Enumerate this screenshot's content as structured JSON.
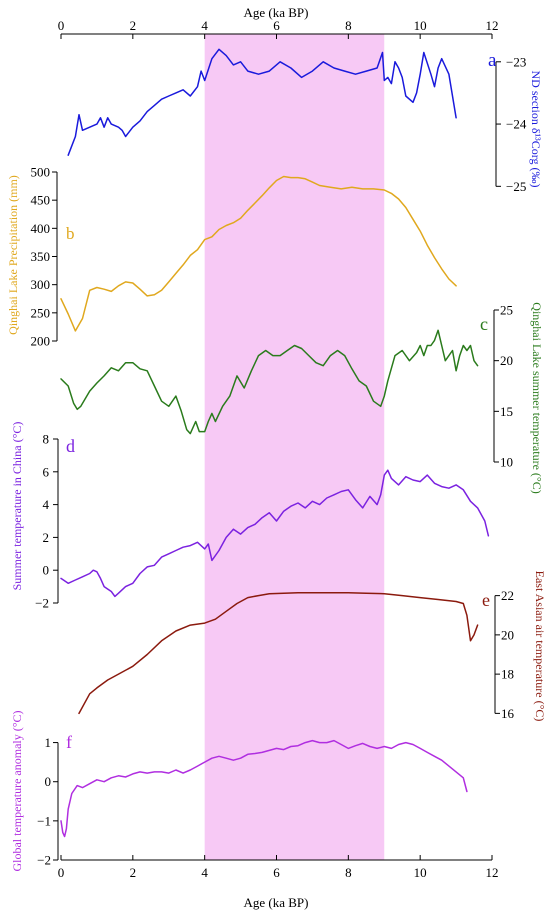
{
  "chart_data": {
    "type": "line",
    "x_axis": {
      "label": "Age (ka BP)",
      "range": [
        0,
        12
      ],
      "ticks": [
        0,
        2,
        4,
        6,
        8,
        10,
        12
      ],
      "tick_labels": [
        "0",
        "2",
        "4",
        "6",
        "8",
        "10",
        "12"
      ]
    },
    "shaded_interval": {
      "x_range": [
        4,
        9
      ],
      "color": "#f7c9f5"
    },
    "panels": [
      {
        "id": "a",
        "panel_letter": "a",
        "color": "#1a1adc",
        "ylabel": "ND section δ¹³Corg (‰)",
        "y_side": "right",
        "y_range": [
          -25.3,
          -22.65
        ],
        "y_ticks": [
          -23,
          -24,
          -25
        ],
        "tick_labels": [
          "−23",
          "−24",
          "−25"
        ],
        "x": [
          0.2,
          0.4,
          0.5,
          0.6,
          0.8,
          1.0,
          1.1,
          1.2,
          1.3,
          1.4,
          1.6,
          1.7,
          1.8,
          2.0,
          2.2,
          2.4,
          2.6,
          2.8,
          3.0,
          3.2,
          3.4,
          3.6,
          3.8,
          3.9,
          4.0,
          4.2,
          4.4,
          4.6,
          4.8,
          5.0,
          5.2,
          5.5,
          5.8,
          6.1,
          6.4,
          6.7,
          7.0,
          7.3,
          7.6,
          7.9,
          8.2,
          8.5,
          8.8,
          8.95,
          9.0,
          9.1,
          9.2,
          9.3,
          9.4,
          9.5,
          9.6,
          9.8,
          9.9,
          10.0,
          10.1,
          10.3,
          10.4,
          10.5,
          10.6,
          10.8,
          11.0
        ],
        "values": [
          -24.5,
          -24.2,
          -23.85,
          -24.1,
          -24.05,
          -24.0,
          -23.9,
          -24.05,
          -23.9,
          -24.0,
          -24.05,
          -24.1,
          -24.2,
          -24.05,
          -23.95,
          -23.8,
          -23.7,
          -23.6,
          -23.55,
          -23.5,
          -23.45,
          -23.55,
          -23.4,
          -23.15,
          -23.3,
          -22.95,
          -22.8,
          -22.9,
          -23.05,
          -23.0,
          -23.15,
          -23.2,
          -23.15,
          -23.0,
          -23.1,
          -23.25,
          -23.15,
          -23.0,
          -23.1,
          -23.15,
          -23.2,
          -23.15,
          -23.1,
          -22.85,
          -23.3,
          -23.25,
          -23.35,
          -23.0,
          -23.1,
          -23.25,
          -23.55,
          -23.65,
          -23.5,
          -23.2,
          -22.85,
          -23.2,
          -23.4,
          -23.1,
          -22.95,
          -23.2,
          -23.9
        ]
      },
      {
        "id": "b",
        "panel_letter": "b",
        "color": "#e0a81e",
        "ylabel": "Qinghai Lake Precipitation (mm)",
        "y_side": "left",
        "y_range": [
          200,
          500
        ],
        "y_ticks": [
          200,
          250,
          300,
          350,
          400,
          450,
          500
        ],
        "tick_labels": [
          "200",
          "250",
          "300",
          "350",
          "400",
          "450",
          "500"
        ],
        "x": [
          0,
          0.2,
          0.4,
          0.6,
          0.8,
          1.0,
          1.2,
          1.4,
          1.6,
          1.8,
          2.0,
          2.2,
          2.4,
          2.6,
          2.8,
          3.0,
          3.2,
          3.4,
          3.6,
          3.8,
          4.0,
          4.2,
          4.4,
          4.6,
          4.8,
          5.0,
          5.2,
          5.4,
          5.6,
          5.8,
          6.0,
          6.2,
          6.4,
          6.6,
          6.8,
          7.0,
          7.2,
          7.5,
          7.8,
          8.1,
          8.4,
          8.7,
          9.0,
          9.2,
          9.4,
          9.6,
          9.8,
          10.0,
          10.2,
          10.4,
          10.6,
          10.8,
          11.0
        ],
        "values": [
          275,
          248,
          218,
          240,
          290,
          295,
          292,
          288,
          298,
          305,
          303,
          292,
          280,
          282,
          290,
          305,
          320,
          335,
          352,
          362,
          380,
          385,
          398,
          405,
          410,
          418,
          432,
          445,
          458,
          472,
          485,
          492,
          490,
          490,
          488,
          482,
          476,
          473,
          470,
          473,
          470,
          470,
          468,
          462,
          452,
          437,
          416,
          395,
          370,
          348,
          328,
          310,
          298
        ]
      },
      {
        "id": "c",
        "panel_letter": "c",
        "color": "#2a7b1c",
        "ylabel": "Qinghai Lake summer temperature (°C)",
        "y_side": "right",
        "y_range": [
          10,
          25
        ],
        "y_ticks": [
          10,
          15,
          20,
          25
        ],
        "tick_labels": [
          "10",
          "15",
          "20",
          "25"
        ],
        "x": [
          0,
          0.2,
          0.35,
          0.45,
          0.55,
          0.8,
          1.0,
          1.2,
          1.4,
          1.6,
          1.8,
          2.0,
          2.2,
          2.4,
          2.6,
          2.8,
          3.0,
          3.2,
          3.35,
          3.5,
          3.6,
          3.75,
          3.85,
          4.0,
          4.1,
          4.2,
          4.3,
          4.5,
          4.7,
          4.9,
          5.1,
          5.3,
          5.5,
          5.7,
          5.9,
          6.1,
          6.3,
          6.5,
          6.7,
          6.9,
          7.1,
          7.3,
          7.5,
          7.7,
          7.9,
          8.1,
          8.3,
          8.5,
          8.7,
          8.9,
          9.0,
          9.1,
          9.3,
          9.5,
          9.7,
          9.9,
          10.0,
          10.1,
          10.2,
          10.3,
          10.4,
          10.5,
          10.6,
          10.7,
          10.8,
          10.9,
          11.0,
          11.1,
          11.2,
          11.3,
          11.4,
          11.5,
          11.6
        ],
        "values": [
          18.2,
          17.5,
          15.8,
          15.2,
          15.5,
          17.0,
          17.8,
          18.5,
          19.3,
          19.0,
          19.8,
          19.8,
          19.2,
          19.0,
          17.5,
          16.0,
          15.5,
          16.5,
          15.0,
          13.2,
          12.8,
          14.0,
          13.0,
          13.0,
          14.0,
          14.8,
          14.0,
          15.5,
          16.5,
          18.5,
          17.3,
          19.0,
          20.5,
          21.0,
          20.5,
          20.5,
          21.0,
          21.5,
          21.2,
          20.5,
          19.8,
          19.5,
          20.5,
          21.0,
          20.5,
          19.2,
          18.0,
          17.5,
          16.0,
          15.5,
          16.5,
          18.0,
          20.5,
          21.0,
          20.0,
          20.8,
          21.5,
          20.5,
          21.5,
          21.5,
          22.0,
          23.0,
          21.5,
          20.0,
          20.5,
          21.0,
          19.0,
          20.5,
          21.5,
          21.0,
          21.5,
          20.0,
          19.5
        ]
      },
      {
        "id": "d",
        "panel_letter": "d",
        "color": "#7b22e0",
        "ylabel": "Summer temperature in China (°C)",
        "y_side": "left",
        "y_range": [
          -2,
          8
        ],
        "y_ticks": [
          -2,
          0,
          2,
          4,
          6,
          8
        ],
        "tick_labels": [
          "−2",
          "0",
          "2",
          "4",
          "6",
          "8"
        ],
        "x": [
          0,
          0.2,
          0.4,
          0.6,
          0.8,
          0.9,
          1.0,
          1.1,
          1.2,
          1.4,
          1.5,
          1.6,
          1.8,
          2.0,
          2.2,
          2.4,
          2.6,
          2.8,
          3.0,
          3.2,
          3.4,
          3.6,
          3.8,
          4.0,
          4.1,
          4.2,
          4.4,
          4.6,
          4.8,
          5.0,
          5.2,
          5.4,
          5.6,
          5.8,
          6.0,
          6.2,
          6.4,
          6.6,
          6.8,
          7.0,
          7.2,
          7.4,
          7.6,
          7.8,
          8.0,
          8.2,
          8.4,
          8.6,
          8.8,
          8.9,
          9.0,
          9.1,
          9.2,
          9.4,
          9.6,
          9.8,
          10.0,
          10.2,
          10.4,
          10.6,
          10.8,
          11.0,
          11.2,
          11.4,
          11.6,
          11.8,
          11.9
        ],
        "values": [
          -0.5,
          -0.8,
          -0.6,
          -0.4,
          -0.2,
          0.0,
          -0.1,
          -0.5,
          -1.0,
          -1.3,
          -1.6,
          -1.4,
          -1.0,
          -0.8,
          -0.2,
          0.2,
          0.3,
          0.8,
          1.0,
          1.2,
          1.4,
          1.5,
          1.7,
          1.3,
          1.6,
          0.6,
          1.2,
          2.0,
          2.5,
          2.2,
          2.6,
          2.8,
          3.2,
          3.5,
          3.0,
          3.6,
          3.9,
          4.1,
          3.8,
          4.2,
          4.0,
          4.4,
          4.6,
          4.8,
          4.9,
          4.3,
          3.8,
          4.5,
          4.0,
          4.6,
          5.8,
          6.1,
          5.6,
          5.2,
          5.7,
          5.5,
          5.4,
          5.8,
          5.3,
          5.1,
          5.0,
          5.2,
          4.9,
          4.2,
          3.8,
          3.0,
          2.1
        ]
      },
      {
        "id": "e",
        "panel_letter": "e",
        "color": "#8b1a0e",
        "ylabel": "East Asian air temperature (°C)",
        "y_side": "right",
        "y_range": [
          15,
          23
        ],
        "y_ticks": [
          16,
          18,
          20,
          22
        ],
        "tick_labels": [
          "16",
          "18",
          "20",
          "22"
        ],
        "x": [
          0.5,
          0.8,
          1.0,
          1.3,
          1.6,
          2.0,
          2.4,
          2.8,
          3.2,
          3.6,
          4.0,
          4.3,
          4.6,
          4.9,
          5.2,
          5.5,
          5.8,
          6.2,
          6.6,
          7.0,
          7.5,
          8.0,
          8.5,
          9.0,
          9.5,
          10.0,
          10.5,
          11.0,
          11.2,
          11.3,
          11.4,
          11.5,
          11.6
        ],
        "values": [
          16.0,
          17.0,
          17.3,
          17.7,
          18.0,
          18.4,
          19.0,
          19.7,
          20.2,
          20.5,
          20.6,
          20.8,
          21.2,
          21.6,
          21.9,
          22.0,
          22.1,
          22.12,
          22.15,
          22.15,
          22.15,
          22.15,
          22.12,
          22.1,
          22.0,
          21.9,
          21.8,
          21.7,
          21.6,
          21.0,
          19.7,
          20.0,
          20.5
        ]
      },
      {
        "id": "f",
        "panel_letter": "f",
        "color": "#b02ee0",
        "ylabel": "Global temperature anomaly (°C)",
        "y_side": "left",
        "y_range": [
          -2,
          1.5
        ],
        "y_ticks": [
          -2,
          -1,
          0,
          1
        ],
        "tick_labels": [
          "−2",
          "−1",
          "0",
          "1"
        ],
        "x": [
          0,
          0.05,
          0.1,
          0.15,
          0.2,
          0.3,
          0.45,
          0.6,
          0.8,
          1.0,
          1.2,
          1.4,
          1.6,
          1.8,
          2.0,
          2.2,
          2.4,
          2.6,
          2.8,
          3.0,
          3.2,
          3.4,
          3.6,
          3.8,
          4.0,
          4.2,
          4.4,
          4.6,
          4.8,
          5.0,
          5.2,
          5.4,
          5.6,
          5.8,
          6.0,
          6.2,
          6.4,
          6.6,
          6.8,
          7.0,
          7.2,
          7.4,
          7.6,
          7.8,
          8.0,
          8.2,
          8.4,
          8.6,
          8.8,
          9.0,
          9.2,
          9.4,
          9.6,
          9.8,
          10.0,
          10.2,
          10.4,
          10.6,
          10.8,
          11.0,
          11.2,
          11.3
        ],
        "values": [
          -1.0,
          -1.3,
          -1.4,
          -1.2,
          -0.7,
          -0.3,
          -0.1,
          -0.15,
          -0.05,
          0.05,
          0.0,
          0.1,
          0.15,
          0.12,
          0.2,
          0.25,
          0.22,
          0.25,
          0.25,
          0.22,
          0.3,
          0.22,
          0.3,
          0.4,
          0.5,
          0.6,
          0.65,
          0.6,
          0.55,
          0.6,
          0.7,
          0.72,
          0.75,
          0.8,
          0.85,
          0.82,
          0.9,
          0.92,
          1.0,
          1.05,
          1.0,
          1.0,
          1.05,
          0.95,
          0.85,
          0.92,
          0.98,
          0.9,
          0.85,
          0.9,
          0.85,
          0.95,
          1.0,
          0.95,
          0.85,
          0.75,
          0.65,
          0.55,
          0.4,
          0.25,
          0.1,
          -0.25
        ]
      }
    ]
  }
}
